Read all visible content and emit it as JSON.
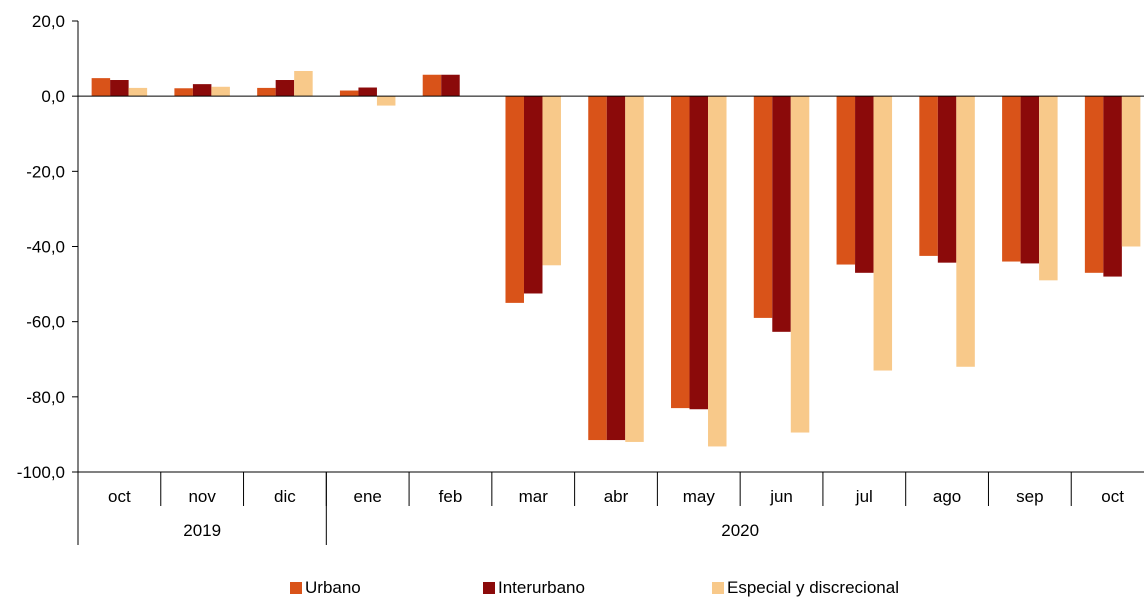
{
  "chart_data": {
    "type": "bar",
    "categories": [
      "oct",
      "nov",
      "dic",
      "ene",
      "feb",
      "mar",
      "abr",
      "may",
      "jun",
      "jul",
      "ago",
      "sep",
      "oct"
    ],
    "groups": [
      {
        "label": "2019",
        "span": 3
      },
      {
        "label": "2020",
        "span": 10
      }
    ],
    "series": [
      {
        "name": "Urbano",
        "color": "#D95319",
        "values": [
          4.8,
          2.1,
          2.2,
          1.5,
          5.7,
          -55.0,
          -91.5,
          -83.0,
          -59.0,
          -44.8,
          -42.5,
          -44.0,
          -47.0
        ]
      },
      {
        "name": "Interurbano",
        "color": "#8B0A0A",
        "values": [
          4.3,
          3.2,
          4.3,
          2.3,
          5.7,
          -52.5,
          -91.5,
          -83.3,
          -62.7,
          -47.0,
          -44.3,
          -44.5,
          -48.0
        ]
      },
      {
        "name": "Especial y discrecional",
        "color": "#F8C98A",
        "values": [
          2.2,
          2.5,
          6.7,
          -2.5,
          0.0,
          -45.0,
          -92.0,
          -93.2,
          -89.5,
          -73.0,
          -72.0,
          -49.0,
          -40.0
        ]
      }
    ],
    "yticks": [
      "20,0",
      "0,0",
      "-20,0",
      "-40,0",
      "-60,0",
      "-80,0",
      "-100,0"
    ],
    "ylim": [
      -100,
      20
    ],
    "xlabel": "",
    "ylabel": "",
    "title": "",
    "legend_position": "bottom",
    "grid": false
  }
}
